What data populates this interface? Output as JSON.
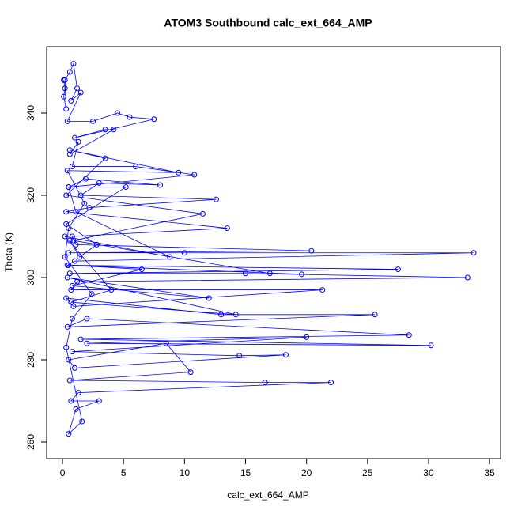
{
  "chart_data": {
    "type": "line",
    "markers": true,
    "color": "#0000ff",
    "title": "ATOM3 Southbound calc_ext_664_AMP",
    "x_label": "calc_ext_664_AMP",
    "y_label": "Theta (K)",
    "xlim": [
      -1.3,
      35.9
    ],
    "ylim": [
      255.96,
      356.15
    ],
    "xticks": [
      0,
      5,
      10,
      15,
      20,
      25,
      30,
      35
    ],
    "yticks": [
      260,
      280,
      300,
      320,
      340
    ],
    "x": [
      0.1,
      0.2,
      0.1,
      0.3,
      0.2,
      0.6,
      0.9,
      1.2,
      0.7,
      1.5,
      0.4,
      2.5,
      4.5,
      5.5,
      7.5,
      1.0,
      3.5,
      4.2,
      0.6,
      1.3,
      0.8,
      6.0,
      10.8,
      0.5,
      1.9,
      8.0,
      3.0,
      1.5,
      12.6,
      2.2,
      0.3,
      13.5,
      0.8,
      1.1,
      20.4,
      0.5,
      10.0,
      33.7,
      1.0,
      0.4,
      27.5,
      0.6,
      15.0,
      33.2,
      1.2,
      0.7,
      21.3,
      0.9,
      0.3,
      13.0,
      25.6,
      0.4,
      2.0,
      28.4,
      1.5,
      30.2,
      2.0,
      20.0,
      0.8,
      14.5,
      18.3,
      1.0,
      0.5,
      8.5,
      10.5,
      0.6,
      16.6,
      22.0,
      1.3,
      0.7,
      3.0,
      1.1,
      0.5,
      1.6,
      0.3,
      0.8,
      2.4,
      0.2,
      0.5,
      1.8,
      0.4,
      9.5,
      0.6,
      3.5,
      0.3,
      11.5,
      0.9,
      17.0,
      19.6,
      0.5,
      6.5,
      0.8,
      12.0,
      0.4,
      14.2,
      0.7,
      4.0,
      0.2,
      8.8,
      1.1,
      0.5,
      5.2,
      0.3,
      2.8,
      1.4,
      0.6
    ],
    "values": [
      348,
      346,
      344,
      341,
      348,
      350,
      352,
      346,
      343,
      345,
      338,
      338,
      340,
      339,
      338.5,
      334,
      336,
      336,
      330,
      333,
      327,
      327,
      325,
      322,
      324,
      322.5,
      323,
      320,
      319,
      317,
      316,
      312,
      310,
      308,
      306.5,
      306,
      306,
      306,
      304,
      303,
      302,
      301,
      301,
      300,
      299,
      297,
      297,
      293,
      295,
      291,
      291,
      288,
      290,
      286,
      285,
      283.5,
      284,
      285.5,
      282,
      281,
      281.2,
      278,
      280,
      284,
      277,
      275,
      274.5,
      274.5,
      272,
      270,
      270,
      268,
      262,
      265,
      283,
      290,
      296,
      305,
      312,
      318,
      326,
      325.5,
      331,
      329,
      320,
      315.5,
      309,
      301,
      300.8,
      303,
      302,
      298,
      295,
      300,
      291,
      294,
      297,
      310,
      305,
      316,
      322,
      322,
      313,
      308,
      305,
      309
    ]
  }
}
